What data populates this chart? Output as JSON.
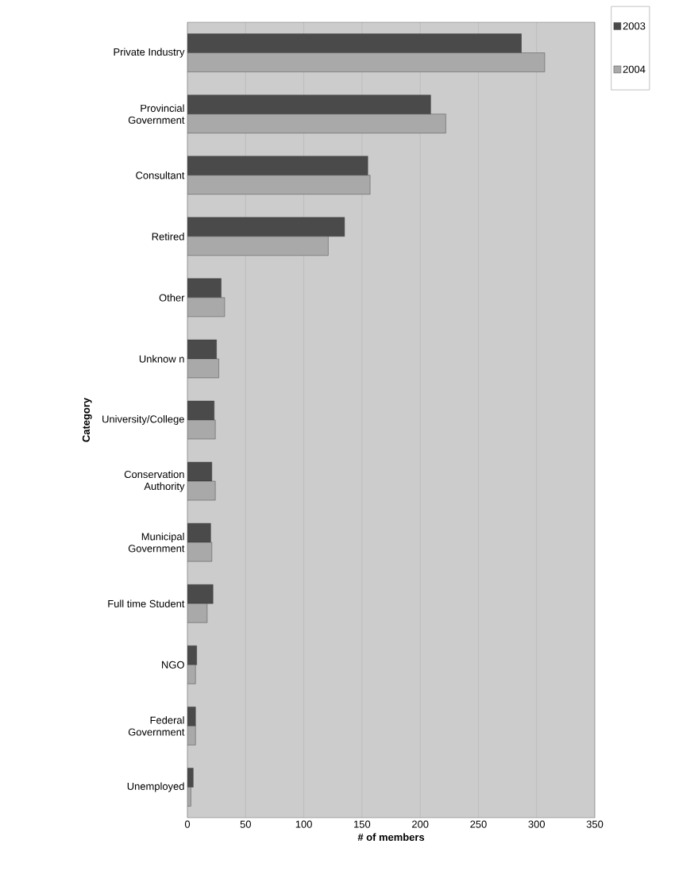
{
  "chart_data": {
    "type": "bar",
    "orientation": "horizontal",
    "xlabel": "# of members",
    "ylabel": "Category",
    "categories": [
      "Private Industry",
      "Provincial Government",
      "Consultant",
      "Retired",
      "Other",
      "Unknow n",
      "University/College",
      "Conservation Authority",
      "Municipal Government",
      "Full time Student",
      "NGO",
      "Federal Government",
      "Unemployed"
    ],
    "series": [
      {
        "name": "2003",
        "color": "#4a4a4a",
        "values": [
          287,
          209,
          155,
          135,
          29,
          25,
          23,
          21,
          20,
          22,
          8,
          7,
          5
        ]
      },
      {
        "name": "2004",
        "color": "#a9a9a9",
        "values": [
          307,
          222,
          157,
          121,
          32,
          27,
          24,
          24,
          21,
          17,
          7,
          7,
          3
        ]
      }
    ],
    "xlim": [
      0,
      350
    ],
    "xticks": [
      0,
      50,
      100,
      150,
      200,
      250,
      300,
      350
    ],
    "grid": "x",
    "legend": "top right"
  }
}
